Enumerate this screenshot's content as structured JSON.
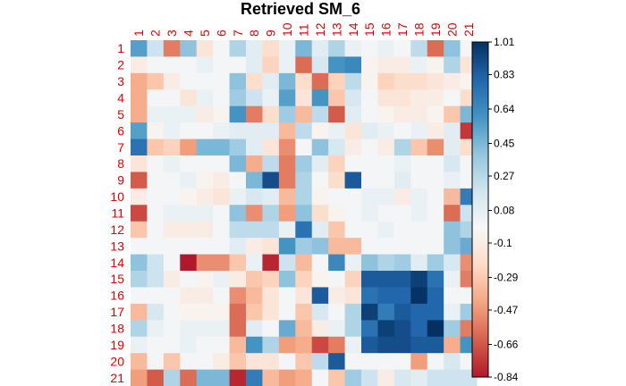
{
  "chart_data": {
    "type": "heatmap",
    "title": "Retrieved SM_6",
    "row_labels": [
      "1",
      "2",
      "3",
      "4",
      "5",
      "6",
      "7",
      "8",
      "9",
      "10",
      "11",
      "12",
      "13",
      "14",
      "15",
      "16",
      "17",
      "18",
      "19",
      "20",
      "21"
    ],
    "col_labels": [
      "1",
      "2",
      "3",
      "4",
      "5",
      "6",
      "7",
      "8",
      "9",
      "10",
      "11",
      "12",
      "13",
      "14",
      "15",
      "16",
      "17",
      "18",
      "19",
      "20",
      "21"
    ],
    "label_color": "#e00000",
    "colorbar": {
      "ticks": [
        1.01,
        0.83,
        0.64,
        0.45,
        0.27,
        0.08,
        -0.1,
        -0.29,
        -0.47,
        -0.66,
        -0.84
      ],
      "range": [
        -0.84,
        1.01
      ],
      "colors": [
        "#b2182b",
        "#d6604d",
        "#f4a582",
        "#fddbc7",
        "#f7f7f7",
        "#d1e5f0",
        "#92c5de",
        "#4393c3",
        "#2166ac",
        "#053061"
      ]
    },
    "values": [
      [
        0.55,
        0.2,
        -0.55,
        0.4,
        -0.15,
        0.0,
        0.3,
        0.1,
        -0.2,
        0.05,
        0.45,
        0.1,
        0.3,
        0.05,
        0.0,
        0.05,
        0.0,
        0.25,
        -0.6,
        0.4,
        0.0
      ],
      [
        -0.1,
        0.0,
        0.0,
        0.0,
        0.05,
        0.0,
        0.0,
        0.1,
        -0.25,
        0.05,
        -0.6,
        0.15,
        0.6,
        0.65,
        -0.05,
        -0.1,
        -0.1,
        0.05,
        -0.05,
        0.3,
        -0.15
      ],
      [
        -0.4,
        -0.3,
        -0.1,
        0.0,
        0.0,
        0.0,
        0.4,
        -0.2,
        0.1,
        0.45,
        -0.2,
        -0.6,
        -0.25,
        0.25,
        -0.05,
        -0.25,
        -0.2,
        -0.2,
        -0.15,
        -0.1,
        -0.05
      ],
      [
        -0.4,
        0.0,
        0.0,
        -0.15,
        0.05,
        0.0,
        0.35,
        0.2,
        0.05,
        0.55,
        -0.15,
        0.6,
        -0.3,
        0.15,
        0.0,
        -0.15,
        -0.15,
        -0.1,
        -0.1,
        0.0,
        -0.2
      ],
      [
        -0.4,
        0.05,
        0.05,
        0.05,
        -0.1,
        -0.05,
        0.6,
        -0.55,
        -0.2,
        0.35,
        -0.35,
        0.25,
        -0.65,
        0.1,
        0.0,
        -0.05,
        -0.1,
        -0.1,
        -0.05,
        -0.3,
        0.45
      ],
      [
        0.55,
        -0.05,
        0.05,
        0.0,
        0.0,
        0.05,
        0.1,
        0.1,
        0.1,
        -0.35,
        0.25,
        -0.05,
        0.05,
        -0.15,
        0.1,
        0.05,
        0.0,
        0.05,
        -0.1,
        0.1,
        -0.75
      ],
      [
        0.75,
        -0.3,
        -0.25,
        -0.45,
        0.45,
        0.45,
        0.35,
        0.1,
        -0.15,
        -0.5,
        0.0,
        0.4,
        0.15,
        -0.1,
        0.0,
        -0.1,
        0.3,
        -0.3,
        -0.5,
        0.1,
        -0.2
      ],
      [
        -0.15,
        0.0,
        0.05,
        0.0,
        0.0,
        0.0,
        0.45,
        -0.4,
        0.25,
        -0.55,
        0.35,
        0.1,
        -0.25,
        0.0,
        0.0,
        0.0,
        0.05,
        0.0,
        0.0,
        0.15,
        0.0
      ],
      [
        -0.65,
        0.0,
        0.0,
        0.05,
        -0.05,
        -0.1,
        0.0,
        0.45,
        0.9,
        -0.55,
        0.3,
        0.0,
        -0.2,
        0.85,
        0.0,
        0.0,
        0.1,
        0.0,
        0.0,
        0.05,
        0.0
      ],
      [
        -0.1,
        0.0,
        0.0,
        -0.05,
        -0.1,
        -0.15,
        0.05,
        0.15,
        0.1,
        -0.35,
        0.3,
        -0.05,
        0.0,
        0.0,
        0.05,
        0.05,
        -0.1,
        0.05,
        0.0,
        -0.35,
        0.7
      ],
      [
        -0.7,
        0.0,
        0.05,
        0.05,
        0.05,
        0.0,
        0.4,
        -0.5,
        0.3,
        -0.45,
        0.4,
        -0.2,
        -0.05,
        0.0,
        0.05,
        0.0,
        0.0,
        0.05,
        0.0,
        -0.6,
        0.2
      ],
      [
        -0.3,
        0.0,
        -0.1,
        -0.1,
        -0.1,
        0.0,
        0.25,
        0.25,
        0.25,
        0.05,
        0.75,
        0.1,
        -0.3,
        0.0,
        0.0,
        0.05,
        0.0,
        0.0,
        0.0,
        0.4,
        0.3
      ],
      [
        0.0,
        0.0,
        0.0,
        0.0,
        0.0,
        0.0,
        0.1,
        -0.1,
        -0.15,
        0.6,
        0.35,
        0.4,
        -0.35,
        -0.35,
        0.0,
        0.0,
        0.0,
        0.0,
        0.0,
        0.4,
        0.5
      ],
      [
        0.4,
        0.2,
        0.0,
        -0.85,
        -0.5,
        -0.5,
        -0.3,
        0.05,
        -0.8,
        0.2,
        -0.35,
        0.0,
        0.65,
        0.05,
        0.4,
        0.3,
        0.35,
        0.1,
        0.35,
        0.15,
        -0.5
      ],
      [
        0.3,
        0.2,
        -0.1,
        0.0,
        -0.05,
        0.05,
        -0.1,
        -0.3,
        -0.25,
        0.4,
        -0.25,
        -0.05,
        0.0,
        -0.25,
        0.85,
        0.85,
        0.85,
        0.95,
        0.75,
        0.05,
        -0.55
      ],
      [
        0.0,
        0.0,
        0.0,
        -0.1,
        -0.1,
        0.0,
        -0.5,
        -0.35,
        -0.15,
        0.0,
        -0.15,
        0.85,
        -0.1,
        -0.15,
        0.75,
        0.8,
        0.8,
        1.0,
        0.8,
        0.0,
        0.0
      ],
      [
        -0.35,
        0.15,
        0.0,
        -0.05,
        -0.05,
        -0.05,
        -0.6,
        -0.3,
        -0.15,
        0.0,
        -0.3,
        0.15,
        0.0,
        0.3,
        0.95,
        0.7,
        0.85,
        0.8,
        0.8,
        0.05,
        0.35
      ],
      [
        0.3,
        0.05,
        0.0,
        0.05,
        0.05,
        0.05,
        -0.6,
        0.1,
        0.0,
        0.5,
        -0.35,
        -0.1,
        0.05,
        0.3,
        0.75,
        0.95,
        0.9,
        0.8,
        1.01,
        0.35,
        -0.55
      ],
      [
        0.05,
        0.0,
        0.0,
        0.05,
        0.0,
        0.0,
        -0.35,
        0.6,
        0.3,
        -0.45,
        -0.4,
        -0.7,
        -0.55,
        0.05,
        0.85,
        0.9,
        0.9,
        0.85,
        0.85,
        -0.4,
        0.6
      ],
      [
        -0.35,
        0.0,
        -0.3,
        0.0,
        0.0,
        -0.1,
        -0.3,
        -0.15,
        -0.15,
        0.0,
        -0.3,
        0.25,
        0.85,
        0.0,
        0.0,
        0.0,
        0.0,
        -0.45,
        0.0,
        0.15,
        0.0
      ],
      [
        -0.45,
        -0.65,
        0.3,
        -0.6,
        0.45,
        0.45,
        -0.8,
        0.7,
        -0.35,
        -0.45,
        -0.4,
        0.0,
        -0.3,
        0.35,
        0.2,
        -0.1,
        0.15,
        0.1,
        0.2,
        0.2,
        0.2
      ]
    ]
  }
}
